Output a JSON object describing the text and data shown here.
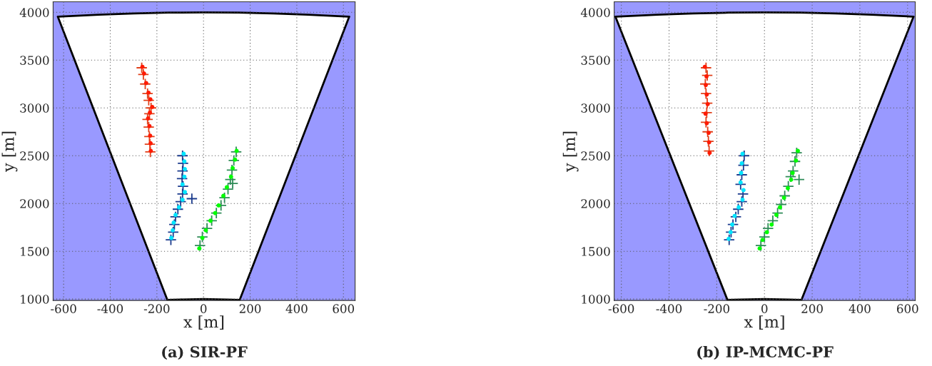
{
  "chart_data": [
    {
      "type": "scatter",
      "title": "(a) SIR-PF",
      "xlabel": "x [m]",
      "ylabel": "y [m]",
      "xlim": [
        -645,
        650
      ],
      "ylim": [
        985,
        4110
      ],
      "xticks": [
        -600,
        -400,
        -200,
        0,
        200,
        400,
        600
      ],
      "yticks": [
        1000,
        1500,
        2000,
        2500,
        3000,
        3500,
        4000
      ],
      "grid": true,
      "series": [
        {
          "type": "area",
          "color": "#000000",
          "x": [
            -155,
            -625,
            -450,
            -300,
            -150,
            0,
            150,
            300,
            450,
            625,
            155,
            100,
            0,
            -100,
            -155
          ],
          "values": [
            990,
            3955,
            3975,
            3989,
            3997,
            4000,
            3997,
            3989,
            3975,
            3955,
            990,
            995,
            1000,
            995,
            990
          ]
        },
        {
          "color": "#ff1a00",
          "marker": "circle",
          "x": [
            -262,
            -255,
            -246,
            -236,
            -228,
            -220,
            -230,
            -238,
            -232,
            -229,
            -227,
            -226
          ],
          "values": [
            3430,
            3360,
            3260,
            3160,
            3090,
            3010,
            2950,
            2890,
            2810,
            2710,
            2630,
            2550
          ]
        },
        {
          "color": "#e0401a",
          "marker": "cross",
          "x": [
            -265,
            -258,
            -250,
            -240,
            -235,
            -225,
            -232,
            -240,
            -235,
            -232,
            -230,
            -228
          ],
          "values": [
            3420,
            3350,
            3250,
            3150,
            3080,
            3000,
            2940,
            2880,
            2800,
            2700,
            2620,
            2540
          ]
        },
        {
          "color": "#00e5ff",
          "marker": "circle",
          "x": [
            -85,
            -82,
            -80,
            -82,
            -90,
            -80,
            -90,
            -105,
            -120,
            -128,
            -132,
            -138
          ],
          "values": [
            2520,
            2440,
            2360,
            2280,
            2200,
            2120,
            2040,
            1960,
            1880,
            1800,
            1720,
            1640
          ]
        },
        {
          "color": "#1a3a8c",
          "marker": "cross",
          "x": [
            -90,
            -88,
            -90,
            -92,
            -88,
            -90,
            -98,
            -110,
            -120,
            -125,
            -130,
            -140,
            -50
          ],
          "values": [
            2500,
            2420,
            2340,
            2260,
            2180,
            2100,
            2020,
            1940,
            1860,
            1780,
            1700,
            1620,
            2050
          ]
        },
        {
          "color": "#00ff00",
          "marker": "circle",
          "x": [
            142,
            135,
            125,
            118,
            100,
            85,
            65,
            50,
            30,
            10,
            -5,
            -18
          ],
          "values": [
            2550,
            2460,
            2370,
            2280,
            2170,
            2080,
            1980,
            1900,
            1820,
            1720,
            1640,
            1530
          ]
        },
        {
          "color": "#2e8b57",
          "marker": "cross",
          "x": [
            140,
            130,
            122,
            115,
            105,
            90,
            75,
            55,
            35,
            15,
            -5,
            -15,
            125
          ],
          "values": [
            2540,
            2450,
            2350,
            2250,
            2150,
            2060,
            1980,
            1900,
            1820,
            1740,
            1650,
            1560,
            2210
          ]
        }
      ]
    },
    {
      "type": "scatter",
      "title": "(b) IP-MCMC-PF",
      "xlabel": "x [m]",
      "ylabel": "y [m]",
      "xlim": [
        -630,
        632
      ],
      "ylim": [
        985,
        4110
      ],
      "xticks": [
        -600,
        -400,
        -200,
        0,
        200,
        400,
        600
      ],
      "yticks": [
        1000,
        1500,
        2000,
        2500,
        3000,
        3500,
        4000
      ],
      "grid": true,
      "series": [
        {
          "type": "area",
          "color": "#000000",
          "x": [
            -155,
            -625,
            -450,
            -300,
            -150,
            0,
            150,
            300,
            450,
            625,
            155,
            100,
            0,
            -100,
            -155
          ],
          "values": [
            990,
            3955,
            3975,
            3989,
            3997,
            4000,
            3997,
            3989,
            3975,
            3955,
            990,
            995,
            1000,
            995,
            990
          ]
        },
        {
          "color": "#ff1a00",
          "marker": "circle",
          "x": [
            -250,
            -243,
            -246,
            -242,
            -238,
            -247,
            -242,
            -234,
            -232,
            -230
          ],
          "values": [
            3430,
            3330,
            3240,
            3140,
            3040,
            2940,
            2840,
            2740,
            2640,
            2530
          ]
        },
        {
          "color": "#e0401a",
          "marker": "cross",
          "x": [
            -245,
            -240,
            -248,
            -245,
            -240,
            -242,
            -245,
            -238,
            -235,
            -232
          ],
          "values": [
            3420,
            3340,
            3250,
            3150,
            3050,
            2950,
            2850,
            2750,
            2650,
            2550
          ]
        },
        {
          "color": "#00e5ff",
          "marker": "circle",
          "x": [
            -92,
            -95,
            -98,
            -100,
            -88,
            -92,
            -108,
            -125,
            -135,
            -142,
            -150
          ],
          "values": [
            2520,
            2420,
            2320,
            2220,
            2140,
            2040,
            1960,
            1870,
            1780,
            1700,
            1630
          ]
        },
        {
          "color": "#1a3a8c",
          "marker": "cross",
          "x": [
            -85,
            -88,
            -95,
            -100,
            -90,
            -95,
            -110,
            -120,
            -132,
            -140,
            -148
          ],
          "values": [
            2500,
            2400,
            2300,
            2200,
            2100,
            2020,
            1940,
            1860,
            1780,
            1700,
            1620
          ]
        },
        {
          "color": "#00ff00",
          "marker": "circle",
          "x": [
            140,
            132,
            118,
            112,
            98,
            82,
            65,
            50,
            30,
            10,
            -8,
            -20
          ],
          "values": [
            2550,
            2450,
            2320,
            2250,
            2160,
            2060,
            1960,
            1880,
            1780,
            1700,
            1620,
            1530
          ]
        },
        {
          "color": "#2e8b57",
          "marker": "cross",
          "x": [
            135,
            128,
            120,
            110,
            100,
            85,
            70,
            55,
            35,
            15,
            0,
            -15,
            145
          ],
          "values": [
            2530,
            2440,
            2340,
            2280,
            2180,
            2080,
            1990,
            1900,
            1820,
            1740,
            1650,
            1560,
            2250
          ]
        }
      ]
    }
  ]
}
